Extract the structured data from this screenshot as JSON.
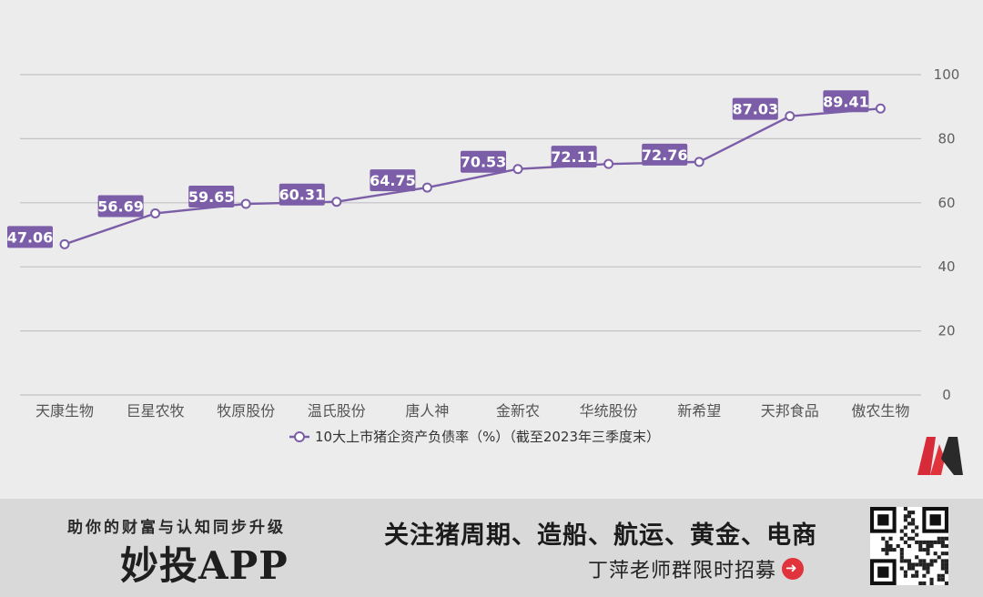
{
  "chart_data": {
    "type": "line",
    "categories": [
      "天康生物",
      "巨星农牧",
      "牧原股份",
      "温氏股份",
      "唐人神",
      "金新农",
      "华统股份",
      "新希望",
      "天邦食品",
      "傲农生物"
    ],
    "series": [
      {
        "name": "10大上市猪企资产负债率（%）（截至2023年三季度末）",
        "values": [
          47.06,
          56.69,
          59.65,
          60.31,
          64.75,
          70.53,
          72.11,
          72.76,
          87.03,
          89.41
        ],
        "labels": [
          "47.06",
          "56.69",
          "59.65",
          "60.31",
          "64.75",
          "70.53",
          "72.11",
          "72.76",
          "87.03",
          "89.41"
        ]
      }
    ],
    "yticks": [
      "0",
      "20",
      "40",
      "60",
      "80",
      "100"
    ],
    "ylim": [
      0,
      100
    ],
    "y_axis_side": "right",
    "grid": true,
    "legend_position": "bottom",
    "title": "",
    "xlabel": "",
    "ylabel": ""
  },
  "colors": {
    "series": "#7b5ea7",
    "label_bg": "#7b5ea7",
    "background": "#ececec",
    "footer_bg": "#d9d9d9",
    "arrow": "#e0333b"
  },
  "footer": {
    "slogan": "助你的财富与认知同步升级",
    "app_name": "妙投APP",
    "headline": "关注猪周期、造船、航运、黄金、电商",
    "sub": "丁萍老师群限时招募"
  }
}
